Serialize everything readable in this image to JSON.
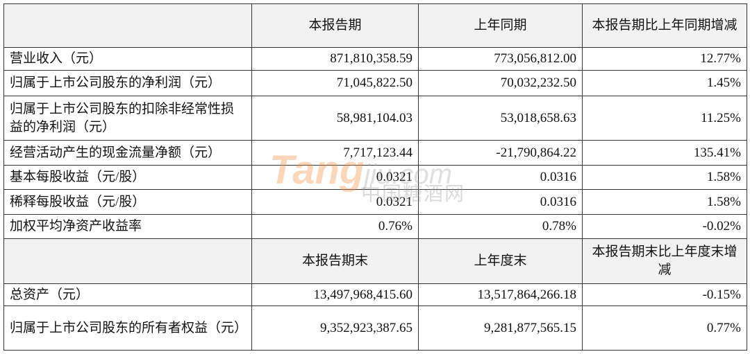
{
  "table": {
    "sections": [
      {
        "columns": [
          "本报告期",
          "上年同期",
          "本报告期比上年同期增减"
        ],
        "rows": [
          [
            "营业收入（元）",
            "871,810,358.59",
            "773,056,812.00",
            "12.77%"
          ],
          [
            "归属于上市公司股东的净利润（元）",
            "71,045,822.50",
            "70,032,232.50",
            "1.45%"
          ],
          [
            "归属于上市公司股东的扣除非经常性损益的净利润（元）",
            "58,981,104.03",
            "53,018,658.63",
            "11.25%"
          ],
          [
            "经营活动产生的现金流量净额（元）",
            "7,717,123.44",
            "-21,790,864.22",
            "135.41%"
          ],
          [
            "基本每股收益（元/股）",
            "0.0321",
            "0.0316",
            "1.58%"
          ],
          [
            "稀释每股收益（元/股）",
            "0.0321",
            "0.0316",
            "1.58%"
          ],
          [
            "加权平均净资产收益率",
            "0.76%",
            "0.78%",
            "-0.02%"
          ]
        ]
      },
      {
        "columns": [
          "本报告期末",
          "上年度末",
          "本报告期末比上年度末增减"
        ],
        "rows": [
          [
            "总资产（元）",
            "13,497,968,415.60",
            "13,517,864,266.18",
            "-0.15%"
          ],
          [
            "归属于上市公司股东的所有者权益（元）",
            "9,352,923,387.65",
            "9,281,877,565.15",
            "0.77%"
          ]
        ]
      }
    ]
  },
  "watermark": {
    "brand": "Tang",
    "domain": "jiu.com",
    "name": "中国糖酒网"
  }
}
